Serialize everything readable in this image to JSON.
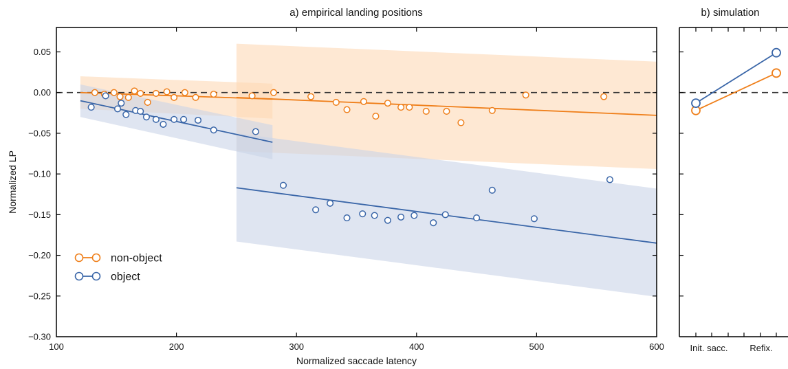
{
  "colors": {
    "non_object": "#ef7f1a",
    "object": "#3a66a8",
    "non_object_band": "#fdd9b5",
    "object_band": "#c9d3e8",
    "reference_line": "#333333"
  },
  "chart_data": [
    {
      "panel": "a",
      "type": "scatter",
      "title": "a) empirical landing positions",
      "xlabel": "Normalized saccade latency",
      "ylabel": "Normalized LP",
      "xlim": [
        100,
        600
      ],
      "ylim": [
        -0.3,
        0.08
      ],
      "xticks": [
        100,
        200,
        300,
        400,
        500,
        600
      ],
      "xtick_labels": [
        "100",
        "200",
        "300",
        "400",
        "500",
        "600"
      ],
      "yticks": [
        -0.3,
        -0.25,
        -0.2,
        -0.15,
        -0.1,
        -0.05,
        0.0,
        0.05
      ],
      "ytick_labels": [
        "−0.30",
        "−0.25",
        "−0.20",
        "−0.15",
        "−0.10",
        "−0.05",
        "0.00",
        "0.05"
      ],
      "reference_line_y": 0.0,
      "grid": false,
      "legend": {
        "position": "bottom-left",
        "entries": [
          "non-object",
          "object"
        ]
      },
      "series": [
        {
          "name": "non-object",
          "color_key": "non_object",
          "points": [
            [
              132,
              0.0
            ],
            [
              140,
              -0.002
            ],
            [
              148,
              0.0
            ],
            [
              153,
              -0.005
            ],
            [
              160,
              -0.006
            ],
            [
              165,
              0.002
            ],
            [
              170,
              -0.001
            ],
            [
              176,
              -0.012
            ],
            [
              183,
              -0.001
            ],
            [
              192,
              0.001
            ],
            [
              198,
              -0.006
            ],
            [
              207,
              0.0
            ],
            [
              216,
              -0.006
            ],
            [
              231,
              -0.002
            ],
            [
              263,
              -0.004
            ],
            [
              281,
              0.0
            ],
            [
              312,
              -0.005
            ],
            [
              333,
              -0.012
            ],
            [
              342,
              -0.021
            ],
            [
              356,
              -0.011
            ],
            [
              366,
              -0.029
            ],
            [
              376,
              -0.013
            ],
            [
              387,
              -0.018
            ],
            [
              394,
              -0.018
            ],
            [
              408,
              -0.023
            ],
            [
              425,
              -0.023
            ],
            [
              437,
              -0.037
            ],
            [
              463,
              -0.022
            ],
            [
              491,
              -0.003
            ],
            [
              556,
              -0.005
            ]
          ],
          "fits": [
            {
              "x": [
                120,
                280
              ],
              "y": [
                0.0,
                -0.008
              ],
              "band_upper": [
                0.02,
                0.011
              ],
              "band_lower": [
                -0.02,
                -0.032
              ]
            },
            {
              "x": [
                250,
                600
              ],
              "y": [
                -0.006,
                -0.028
              ],
              "band_upper": [
                0.06,
                0.038
              ],
              "band_lower": [
                -0.072,
                -0.094
              ]
            }
          ]
        },
        {
          "name": "object",
          "color_key": "object",
          "points": [
            [
              129,
              -0.018
            ],
            [
              141,
              -0.004
            ],
            [
              151,
              -0.02
            ],
            [
              154,
              -0.013
            ],
            [
              158,
              -0.027
            ],
            [
              166,
              -0.022
            ],
            [
              170,
              -0.023
            ],
            [
              175,
              -0.03
            ],
            [
              183,
              -0.033
            ],
            [
              189,
              -0.039
            ],
            [
              198,
              -0.033
            ],
            [
              206,
              -0.033
            ],
            [
              218,
              -0.034
            ],
            [
              231,
              -0.046
            ],
            [
              266,
              -0.048
            ],
            [
              289,
              -0.114
            ],
            [
              316,
              -0.144
            ],
            [
              328,
              -0.136
            ],
            [
              342,
              -0.154
            ],
            [
              355,
              -0.149
            ],
            [
              365,
              -0.151
            ],
            [
              376,
              -0.157
            ],
            [
              387,
              -0.153
            ],
            [
              398,
              -0.151
            ],
            [
              414,
              -0.16
            ],
            [
              424,
              -0.15
            ],
            [
              450,
              -0.154
            ],
            [
              463,
              -0.12
            ],
            [
              498,
              -0.155
            ],
            [
              561,
              -0.107
            ]
          ],
          "fits": [
            {
              "x": [
                120,
                280
              ],
              "y": [
                -0.01,
                -0.061
              ],
              "band_upper": [
                0.01,
                -0.04
              ],
              "band_lower": [
                -0.03,
                -0.082
              ]
            },
            {
              "x": [
                250,
                600
              ],
              "y": [
                -0.117,
                -0.185
              ],
              "band_upper": [
                -0.05,
                -0.118
              ],
              "band_lower": [
                -0.183,
                -0.251
              ]
            }
          ]
        }
      ]
    },
    {
      "panel": "b",
      "type": "line",
      "title": "b) simulation",
      "categories": [
        "Init. sacc.",
        "Refix."
      ],
      "reference_line_y": 0.0,
      "series": [
        {
          "name": "non-object",
          "color_key": "non_object",
          "values": [
            -0.022,
            0.024
          ]
        },
        {
          "name": "object",
          "color_key": "object",
          "values": [
            -0.013,
            0.049
          ]
        }
      ]
    }
  ]
}
